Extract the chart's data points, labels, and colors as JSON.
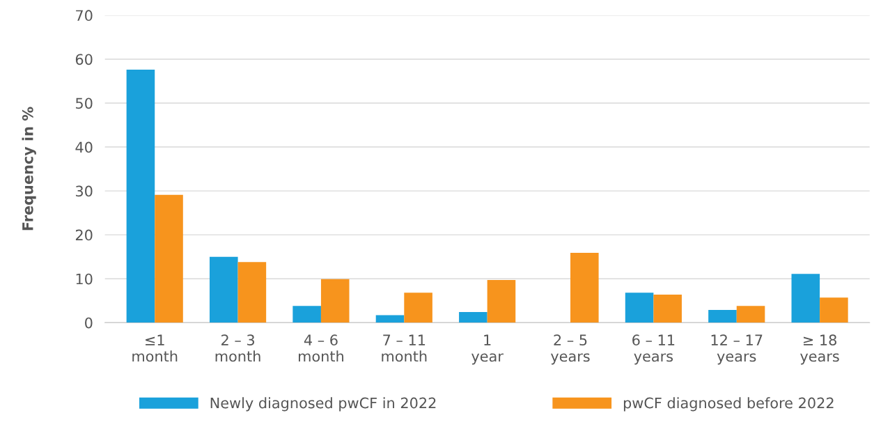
{
  "chart_data": {
    "type": "bar",
    "ylabel": "Frequency in %",
    "categories": [
      "≤1\nmonth",
      "2 – 3\nmonth",
      "4 – 6\nmonth",
      "7 – 11\nmonth",
      "1\nyear",
      "2 – 5\nyears",
      "6 – 11\nyears",
      "12 – 17\nyears",
      "≥ 18\nyears"
    ],
    "series": [
      {
        "name": "Newly diagnosed pwCF in 2022",
        "color": "#1aa1db",
        "values": [
          57.6,
          15.0,
          3.8,
          1.7,
          2.4,
          null,
          6.8,
          2.9,
          11.1
        ]
      },
      {
        "name": "pwCF diagnosed before 2022",
        "color": "#f7941d",
        "values": [
          29.1,
          13.8,
          9.9,
          6.8,
          9.7,
          15.9,
          6.4,
          3.8,
          5.7
        ]
      }
    ],
    "ylim": [
      0,
      70
    ],
    "yticks": [
      0,
      10,
      20,
      30,
      40,
      50,
      60,
      70
    ],
    "grid": "y",
    "legend": "bottom"
  }
}
